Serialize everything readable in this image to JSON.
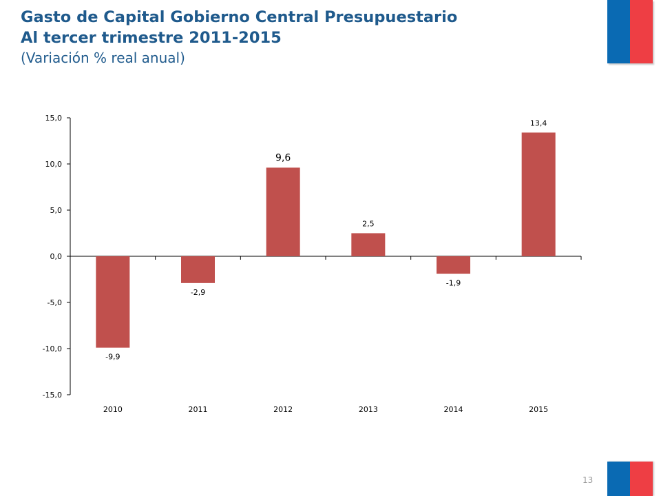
{
  "slide": {
    "title_line1": "Gasto de Capital Gobierno Central Presupuestario",
    "title_line2": "Al tercer trimestre 2011-2015",
    "subtitle": "(Variación % real anual)",
    "page_number": "13"
  },
  "colors": {
    "title": "#1f5a8c",
    "bar": "#c0504d",
    "flag_blue": "#0a6ab3",
    "flag_red": "#ee3e44"
  },
  "chart_data": {
    "type": "bar",
    "categories": [
      "2010",
      "2011",
      "2012",
      "2013",
      "2014",
      "2015"
    ],
    "values": [
      -9.9,
      -2.9,
      9.6,
      2.5,
      -1.9,
      13.4
    ],
    "value_labels": [
      "-9,9",
      "-2,9",
      "9,6",
      "2,5",
      "-1,9",
      "13,4"
    ],
    "y_ticks": [
      15,
      10,
      5,
      0,
      -5,
      -10,
      -15
    ],
    "y_tick_labels": [
      "15,0",
      "10,0",
      "5,0",
      "0,0",
      "-5,0",
      "-10,0",
      "-15,0"
    ],
    "ylim": [
      -15,
      15
    ],
    "grid": false,
    "legend": "none",
    "xlabel": "",
    "ylabel": ""
  }
}
